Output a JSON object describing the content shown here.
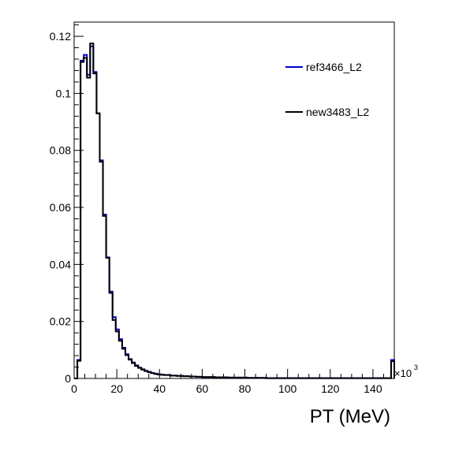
{
  "chart_data": {
    "type": "line",
    "title": "",
    "xlabel": "PT (MeV)",
    "ylabel": "",
    "x_multiplier_label": "×10",
    "x_multiplier_exp": "3",
    "xlim": [
      0,
      150
    ],
    "ylim": [
      0,
      0.125
    ],
    "x_ticks": [
      0,
      20,
      40,
      60,
      80,
      100,
      120,
      140
    ],
    "x_tick_labels": [
      "0",
      "20",
      "40",
      "60",
      "80",
      "100",
      "120",
      "140"
    ],
    "y_ticks": [
      0,
      0.02,
      0.04,
      0.06,
      0.08,
      0.1,
      0.12
    ],
    "y_tick_labels": [
      "0",
      "0.02",
      "0.04",
      "0.06",
      "0.08",
      "0.1",
      "0.12"
    ],
    "grid": false,
    "legend_position": "top-right",
    "bin_edges": [
      0,
      1.5,
      3,
      4.5,
      6,
      7.5,
      9,
      10.5,
      12,
      13.5,
      15,
      16.5,
      18,
      19.5,
      21,
      22.5,
      24,
      25.5,
      27,
      28.5,
      30,
      31.5,
      33,
      34.5,
      36,
      37.5,
      39,
      40.5,
      42,
      45,
      48,
      51,
      54,
      57,
      60,
      63,
      66,
      69,
      72,
      75,
      78,
      81,
      84,
      87,
      90,
      120,
      148.5,
      150
    ],
    "series": [
      {
        "name": "ref3466_L2",
        "color": "#0000cc",
        "values": [
          0,
          0.0065,
          0.1115,
          0.1135,
          0.1065,
          0.1165,
          0.1075,
          0.093,
          0.0765,
          0.0575,
          0.0425,
          0.0305,
          0.0215,
          0.0172,
          0.0138,
          0.0108,
          0.0085,
          0.0068,
          0.0056,
          0.0046,
          0.0038,
          0.0032,
          0.0027,
          0.0023,
          0.0019,
          0.0017,
          0.0015,
          0.0013,
          0.0012,
          0.001,
          0.0009,
          0.0008,
          0.0007,
          0.0006,
          0.0005,
          0.0005,
          0.0004,
          0.0004,
          0.0003,
          0.0003,
          0.0003,
          0.0002,
          0.0002,
          0.0002,
          0.0001,
          0.0001,
          0.0065
        ]
      },
      {
        "name": "new3483_L2",
        "color": "#000000",
        "values": [
          0,
          0.0062,
          0.111,
          0.1125,
          0.1055,
          0.1175,
          0.107,
          0.093,
          0.076,
          0.057,
          0.0423,
          0.03,
          0.0205,
          0.0165,
          0.0132,
          0.0104,
          0.0082,
          0.0066,
          0.0054,
          0.0044,
          0.0037,
          0.0031,
          0.0026,
          0.0022,
          0.0019,
          0.0016,
          0.0014,
          0.0013,
          0.0012,
          0.001,
          0.0009,
          0.0008,
          0.0007,
          0.0006,
          0.0005,
          0.0005,
          0.0004,
          0.0004,
          0.0003,
          0.0003,
          0.0003,
          0.0002,
          0.0002,
          0.0002,
          0.0001,
          0.0001,
          0.006
        ]
      }
    ]
  }
}
